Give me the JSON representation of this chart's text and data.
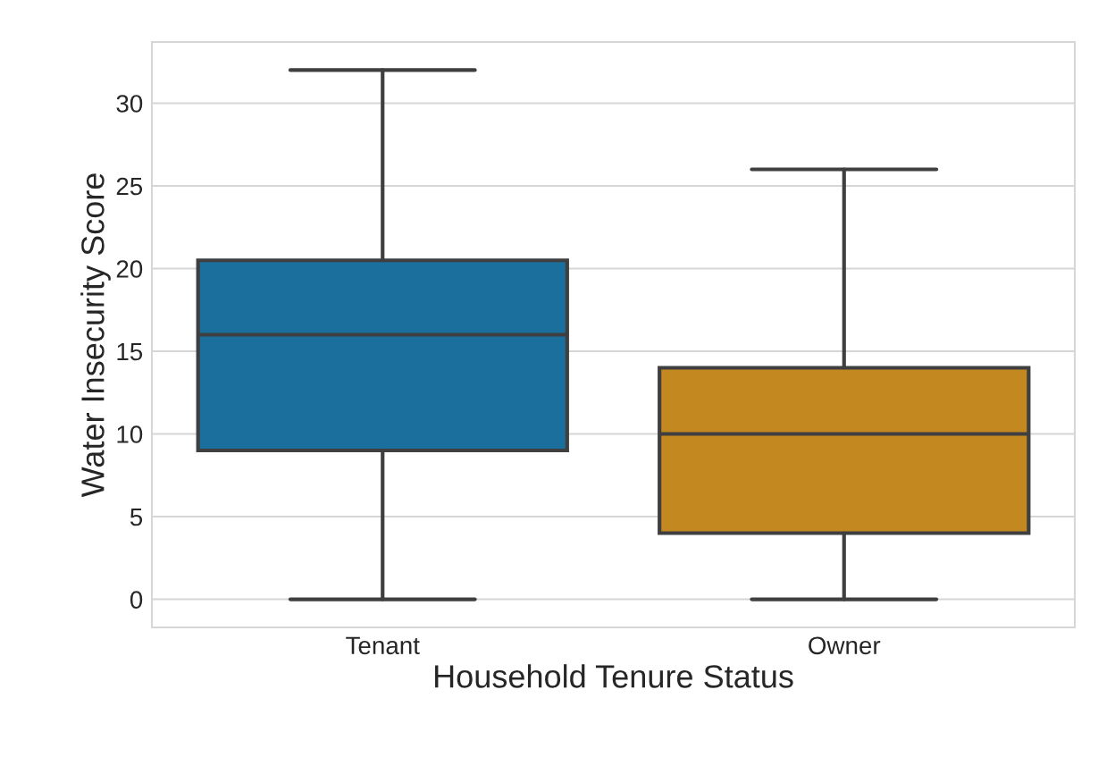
{
  "chart_data": {
    "type": "box",
    "xlabel": "Household Tenure Status",
    "ylabel": "Water Insecurity Score",
    "categories": [
      "Tenant",
      "Owner"
    ],
    "colors": [
      "#1a6f9d",
      "#c48820"
    ],
    "boxes": [
      {
        "low": 0,
        "q1": 9,
        "median": 16,
        "q3": 20.5,
        "high": 32
      },
      {
        "low": 0,
        "q1": 4,
        "median": 10,
        "q3": 14,
        "high": 26
      }
    ],
    "ylim": [
      -1.7,
      33.7
    ],
    "yticks": [
      0,
      5,
      10,
      15,
      20,
      25,
      30
    ],
    "grid": "y"
  }
}
